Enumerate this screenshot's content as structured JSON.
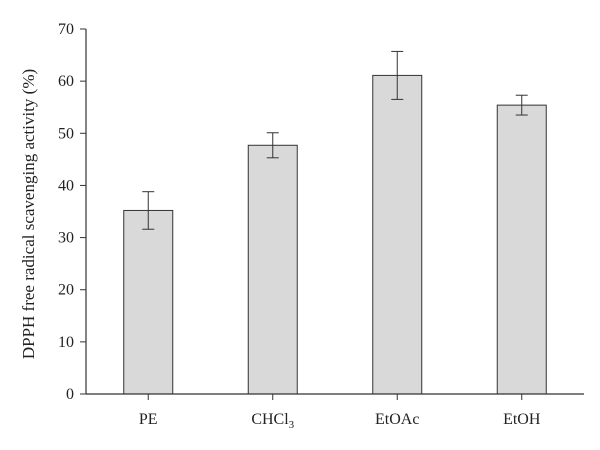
{
  "chart_data": {
    "type": "bar",
    "title": "",
    "xlabel": "",
    "ylabel": "DPPH free radical scavenging activity (%)",
    "ylim": [
      0,
      70
    ],
    "yticks": [
      0,
      10,
      20,
      30,
      40,
      50,
      60,
      70
    ],
    "categories": [
      {
        "main": "PE",
        "sub": "",
        "tail": ""
      },
      {
        "main": "CHCl",
        "sub": "3",
        "tail": ""
      },
      {
        "main": "EtOAc",
        "sub": "",
        "tail": ""
      },
      {
        "main": "EtOH",
        "sub": "",
        "tail": ""
      }
    ],
    "values": [
      35.2,
      47.7,
      61.1,
      55.4
    ],
    "errors": [
      3.6,
      2.4,
      4.6,
      1.9
    ],
    "grid": false,
    "legend": "none",
    "colors": {
      "bar_fill": "#d9d9d9",
      "bar_stroke": "#333333",
      "axis": "#333333"
    }
  }
}
